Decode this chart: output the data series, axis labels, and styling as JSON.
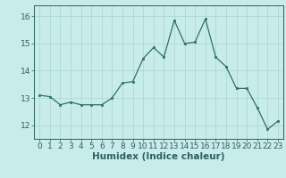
{
  "x": [
    0,
    1,
    2,
    3,
    4,
    5,
    6,
    7,
    8,
    9,
    10,
    11,
    12,
    13,
    14,
    15,
    16,
    17,
    18,
    19,
    20,
    21,
    22,
    23
  ],
  "y": [
    13.1,
    13.05,
    12.75,
    12.85,
    12.75,
    12.75,
    12.75,
    13.0,
    13.55,
    13.6,
    14.45,
    14.85,
    14.5,
    15.85,
    15.0,
    15.05,
    15.9,
    14.5,
    14.15,
    13.35,
    13.35,
    12.65,
    11.85,
    12.15
  ],
  "bg_color": "#c8ecea",
  "grid_color": "#aed8d4",
  "line_color": "#2e7068",
  "marker_color": "#2e7068",
  "xlabel": "Humidex (Indice chaleur)",
  "ylim": [
    11.5,
    16.4
  ],
  "xlim": [
    -0.5,
    23.5
  ],
  "yticks": [
    12,
    13,
    14,
    15,
    16
  ],
  "xticks": [
    0,
    1,
    2,
    3,
    4,
    5,
    6,
    7,
    8,
    9,
    10,
    11,
    12,
    13,
    14,
    15,
    16,
    17,
    18,
    19,
    20,
    21,
    22,
    23
  ],
  "xlabel_fontsize": 7.5,
  "tick_fontsize": 6.5,
  "label_color": "#2e6060"
}
